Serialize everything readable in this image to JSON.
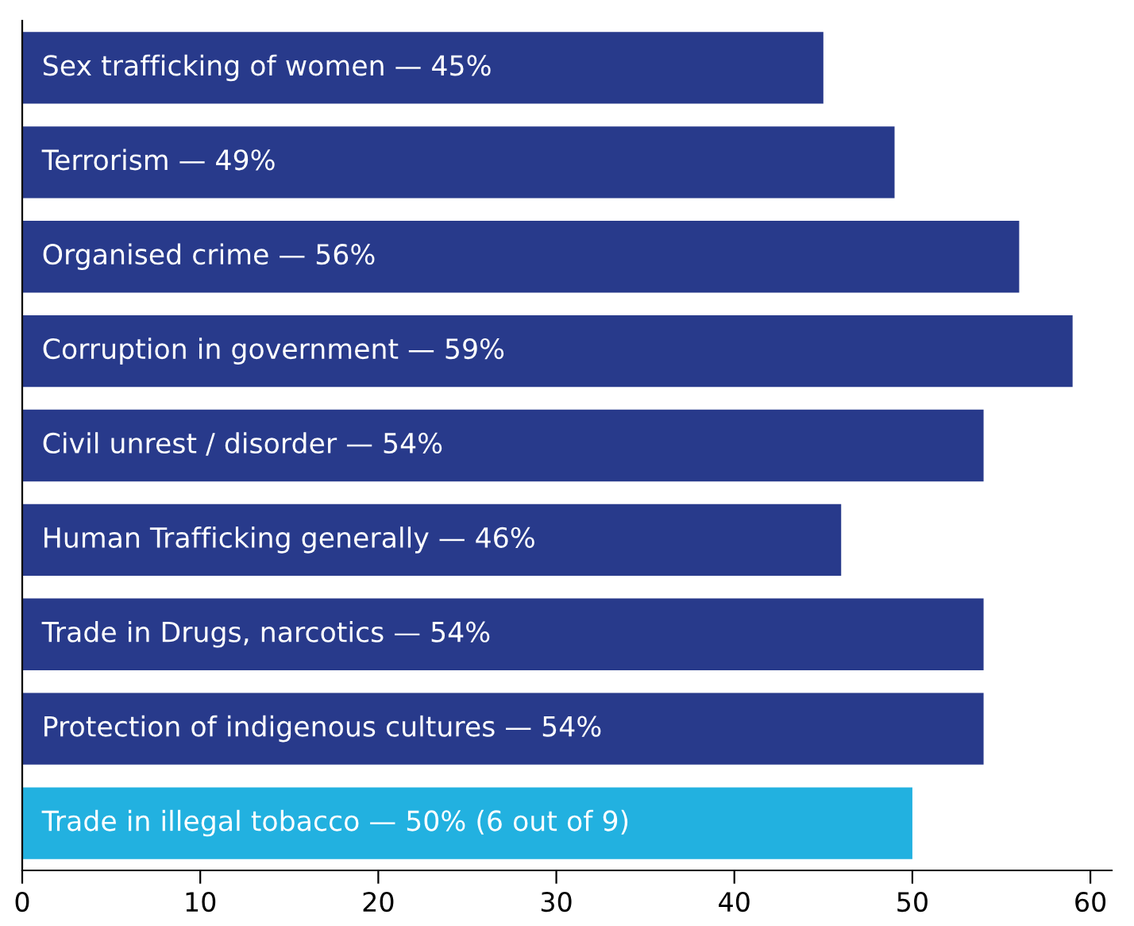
{
  "chart_data": {
    "type": "bar",
    "orientation": "horizontal",
    "categories": [
      "Sex trafficking of women — 45%",
      "Terrorism — 49%",
      "Organised crime — 56%",
      "Corruption in government — 59%",
      "Civil unrest / disorder — 54%",
      "Human Trafficking generally — 46%",
      "Trade in Drugs, narcotics — 54%",
      "Protection of indigenous cultures — 54%",
      "Trade in illegal tobacco — 50% (6 out of 9)"
    ],
    "values": [
      45,
      49,
      56,
      59,
      54,
      46,
      54,
      54,
      50
    ],
    "colors": [
      "#283a8b",
      "#283a8b",
      "#283a8b",
      "#283a8b",
      "#283a8b",
      "#283a8b",
      "#283a8b",
      "#283a8b",
      "#22b1e0"
    ],
    "xlim": [
      0,
      61.2
    ],
    "xticks": [
      0,
      10,
      20,
      30,
      40,
      50,
      60
    ],
    "grid": false,
    "legend": false
  }
}
